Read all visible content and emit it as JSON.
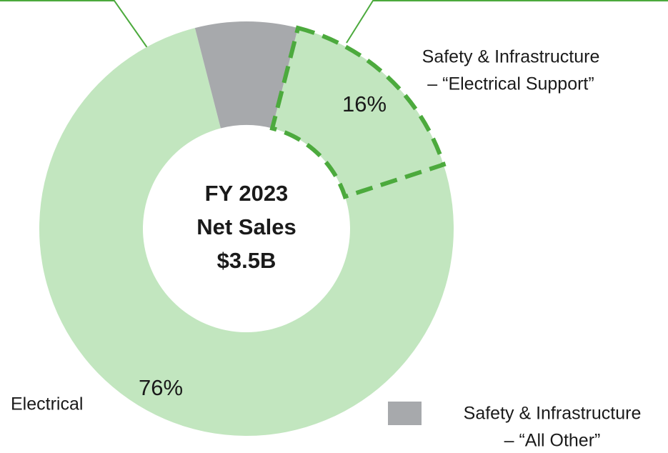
{
  "chart_data": {
    "type": "pie",
    "title": [
      "FY 2023",
      "Net Sales",
      "$3.5B"
    ],
    "categories": [
      [
        "Electrical"
      ],
      [
        "Safety & Infrastructure",
        "– “All Other”"
      ],
      [
        "Safety & Infrastructure",
        "– “Electrical Support”"
      ]
    ],
    "values": [
      76,
      8,
      16
    ],
    "value_labels": [
      "76%",
      null,
      "16%"
    ],
    "colors": [
      "#c2e6bf",
      "#a7a9ac",
      "#c2e6bf"
    ],
    "highlight": {
      "index": 2,
      "color": "#4caa3d",
      "dashed": true
    }
  }
}
